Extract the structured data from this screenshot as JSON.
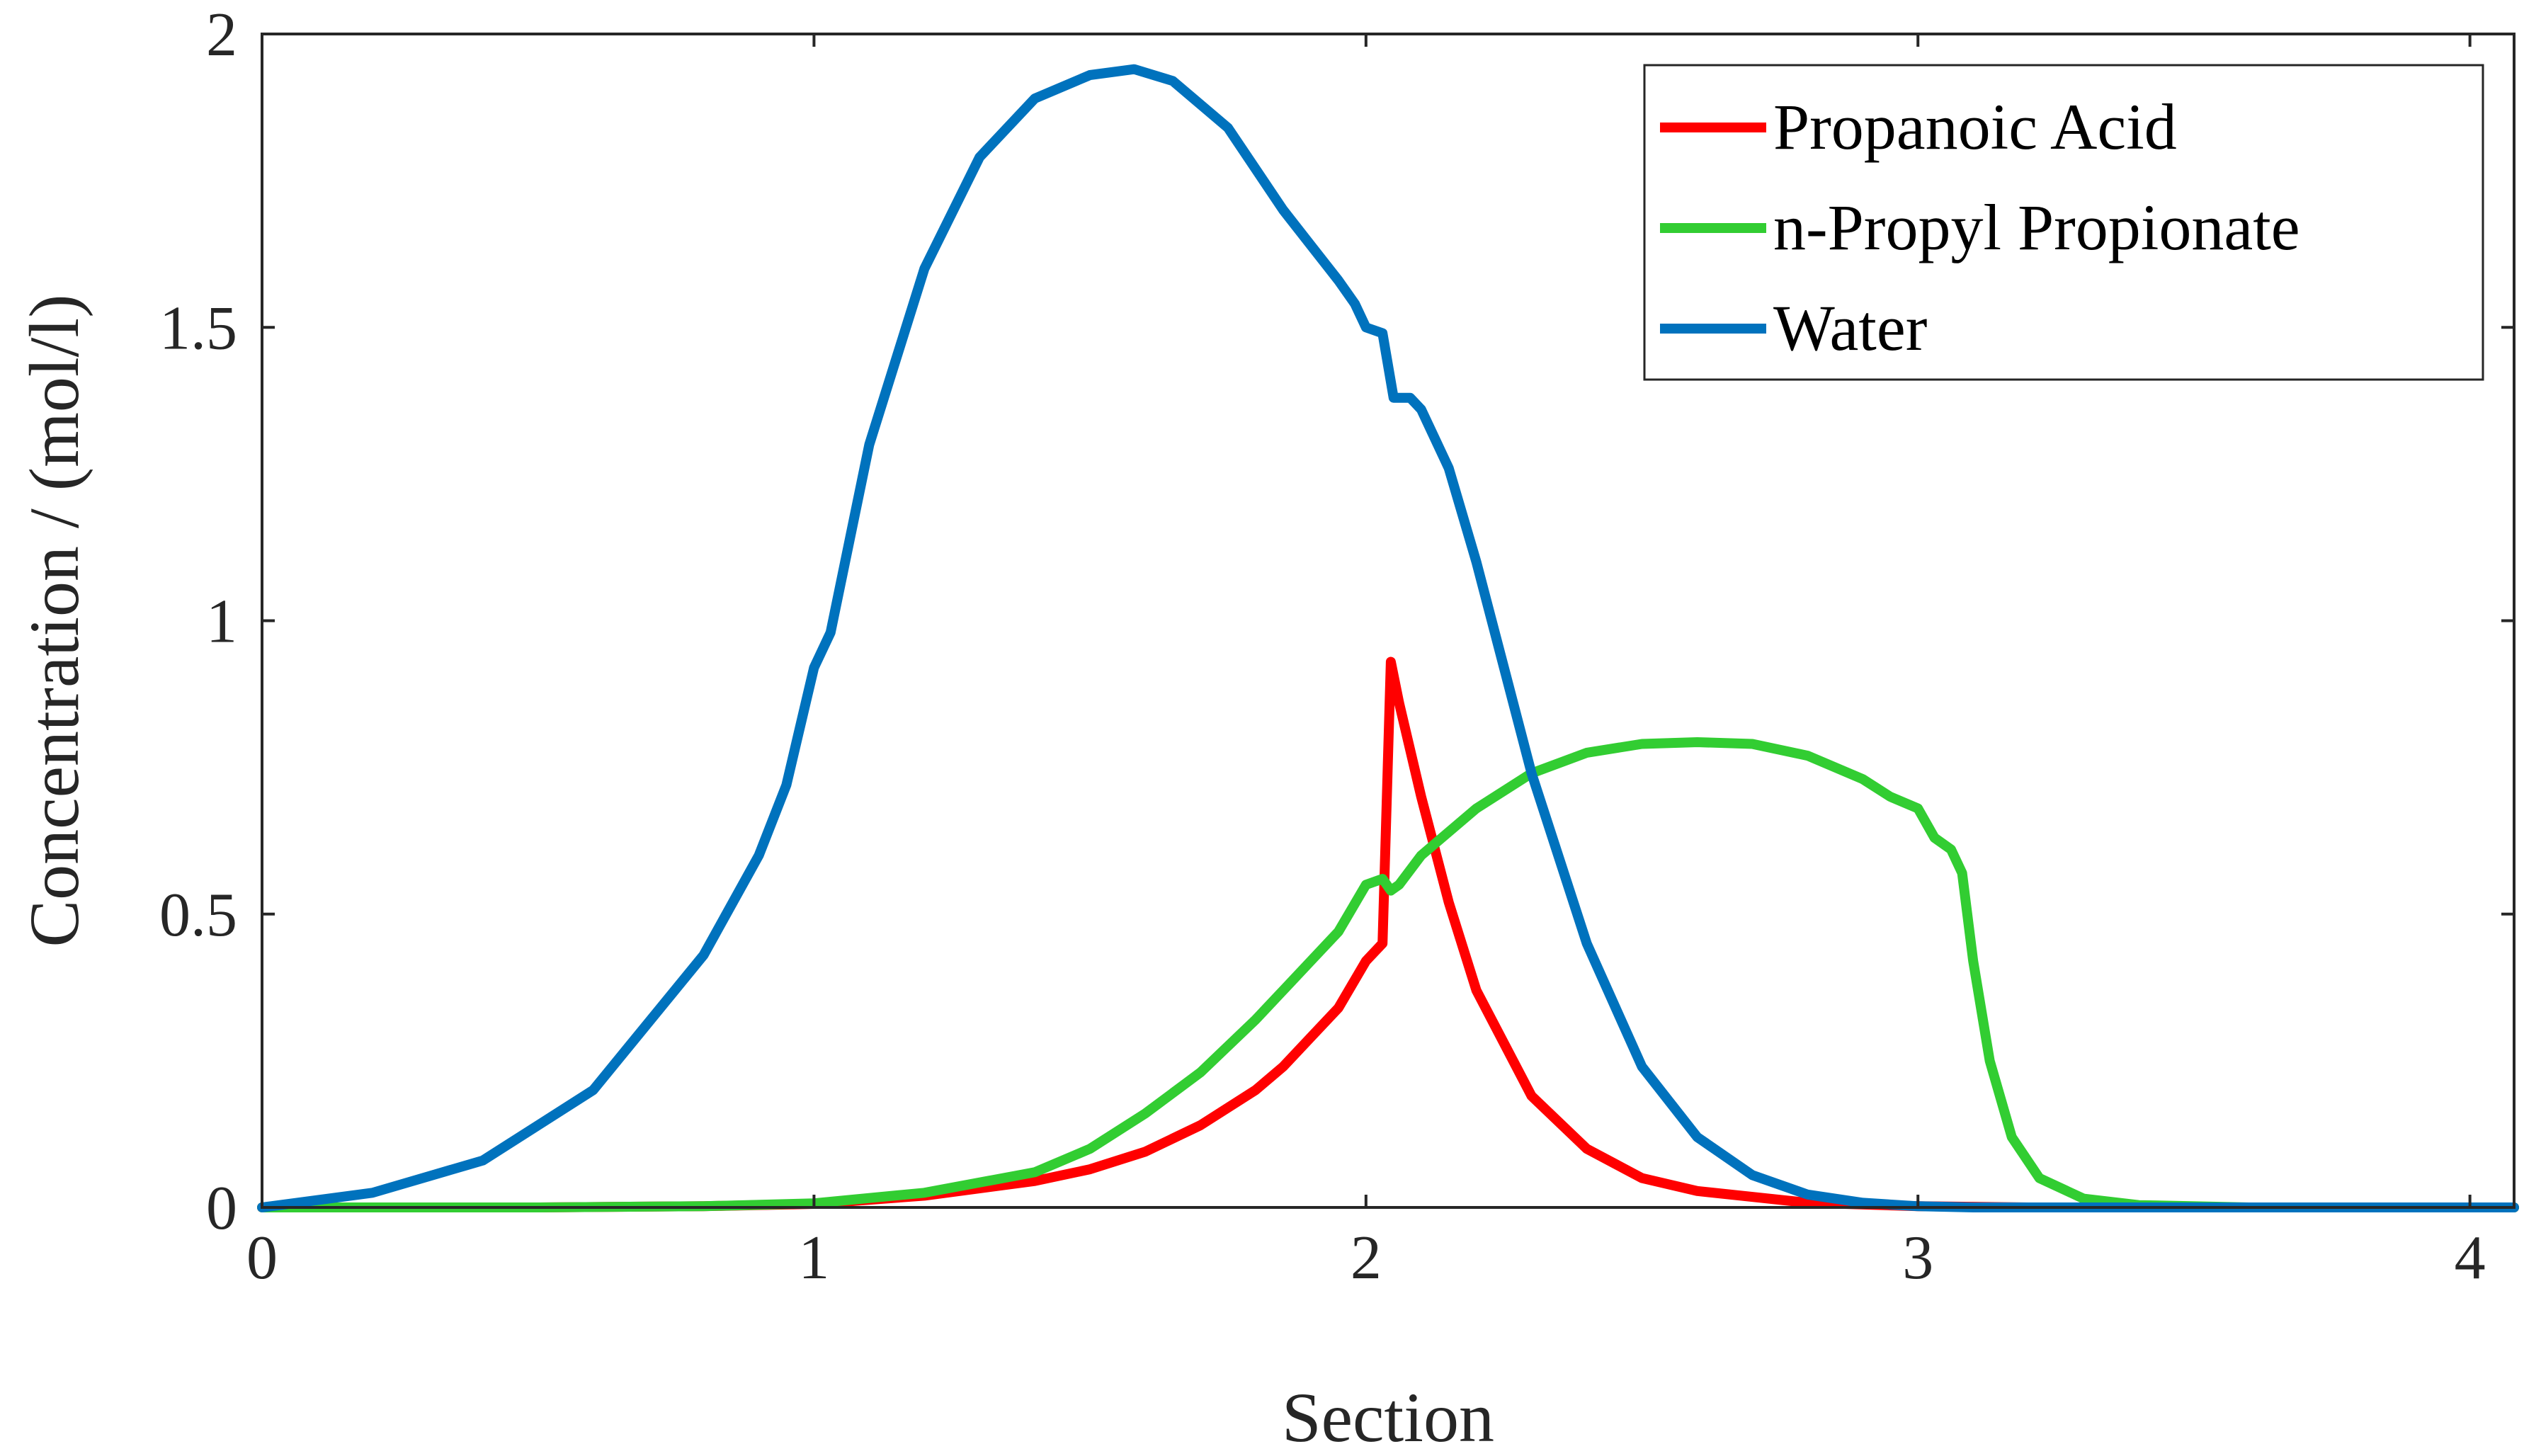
{
  "chart_data": {
    "type": "line",
    "title": "",
    "xlabel": "Section",
    "ylabel": "Concentration / (mol/l)",
    "xlim": [
      0,
      4.08
    ],
    "ylim": [
      0,
      2
    ],
    "xticks": [
      0,
      1,
      2,
      3,
      4
    ],
    "xtick_labels": [
      "0",
      "1",
      "2",
      "3",
      "4"
    ],
    "yticks": [
      0,
      0.5,
      1,
      1.5,
      2
    ],
    "ytick_labels": [
      "0",
      "0.5",
      "1",
      "1.5",
      "2"
    ],
    "grid": false,
    "legend_position": "top-right",
    "series": [
      {
        "name": "Propanoic Acid",
        "color": "#ff0000",
        "x": [
          0,
          0.5,
          0.8,
          1.0,
          1.2,
          1.4,
          1.5,
          1.6,
          1.7,
          1.8,
          1.85,
          1.9,
          1.95,
          2.0,
          2.03,
          2.045,
          2.06,
          2.08,
          2.1,
          2.15,
          2.2,
          2.3,
          2.4,
          2.5,
          2.6,
          2.8,
          3.0,
          3.2,
          3.5,
          4.08
        ],
        "y": [
          0,
          0,
          0.002,
          0.006,
          0.02,
          0.045,
          0.065,
          0.095,
          0.14,
          0.2,
          0.24,
          0.29,
          0.34,
          0.42,
          0.45,
          0.93,
          0.86,
          0.78,
          0.7,
          0.52,
          0.37,
          0.19,
          0.1,
          0.05,
          0.028,
          0.008,
          0.002,
          0,
          0,
          0
        ]
      },
      {
        "name": "n-Propyl Propionate",
        "color": "#32cd32",
        "x": [
          0,
          0.5,
          0.8,
          1.0,
          1.2,
          1.4,
          1.5,
          1.6,
          1.7,
          1.8,
          1.85,
          1.9,
          1.95,
          2.0,
          2.03,
          2.045,
          2.06,
          2.1,
          2.2,
          2.3,
          2.4,
          2.5,
          2.6,
          2.7,
          2.8,
          2.9,
          2.95,
          3.0,
          3.03,
          3.06,
          3.08,
          3.1,
          3.13,
          3.17,
          3.22,
          3.3,
          3.4,
          3.6,
          4.08
        ],
        "y": [
          0,
          0,
          0.002,
          0.007,
          0.025,
          0.06,
          0.1,
          0.16,
          0.23,
          0.32,
          0.37,
          0.42,
          0.47,
          0.55,
          0.56,
          0.54,
          0.55,
          0.6,
          0.68,
          0.74,
          0.775,
          0.79,
          0.793,
          0.79,
          0.77,
          0.73,
          0.7,
          0.68,
          0.63,
          0.61,
          0.57,
          0.42,
          0.25,
          0.12,
          0.05,
          0.015,
          0.004,
          0,
          0
        ]
      },
      {
        "name": "Water",
        "color": "#0072bd",
        "x": [
          0,
          0.2,
          0.4,
          0.6,
          0.8,
          0.9,
          0.95,
          0.97,
          1.0,
          1.03,
          1.1,
          1.2,
          1.3,
          1.4,
          1.5,
          1.58,
          1.65,
          1.75,
          1.85,
          1.9,
          1.95,
          1.98,
          2.0,
          2.03,
          2.05,
          2.08,
          2.1,
          2.15,
          2.2,
          2.25,
          2.3,
          2.4,
          2.5,
          2.6,
          2.7,
          2.8,
          2.9,
          3.0,
          3.1,
          3.2,
          3.5,
          4.08
        ],
        "y": [
          0,
          0.025,
          0.08,
          0.2,
          0.43,
          0.6,
          0.72,
          0.8,
          0.92,
          0.98,
          1.3,
          1.6,
          1.79,
          1.89,
          1.93,
          1.94,
          1.92,
          1.84,
          1.7,
          1.64,
          1.58,
          1.54,
          1.5,
          1.49,
          1.38,
          1.38,
          1.36,
          1.26,
          1.1,
          0.92,
          0.74,
          0.45,
          0.24,
          0.12,
          0.055,
          0.022,
          0.008,
          0.002,
          0,
          0,
          0,
          0
        ]
      }
    ]
  }
}
